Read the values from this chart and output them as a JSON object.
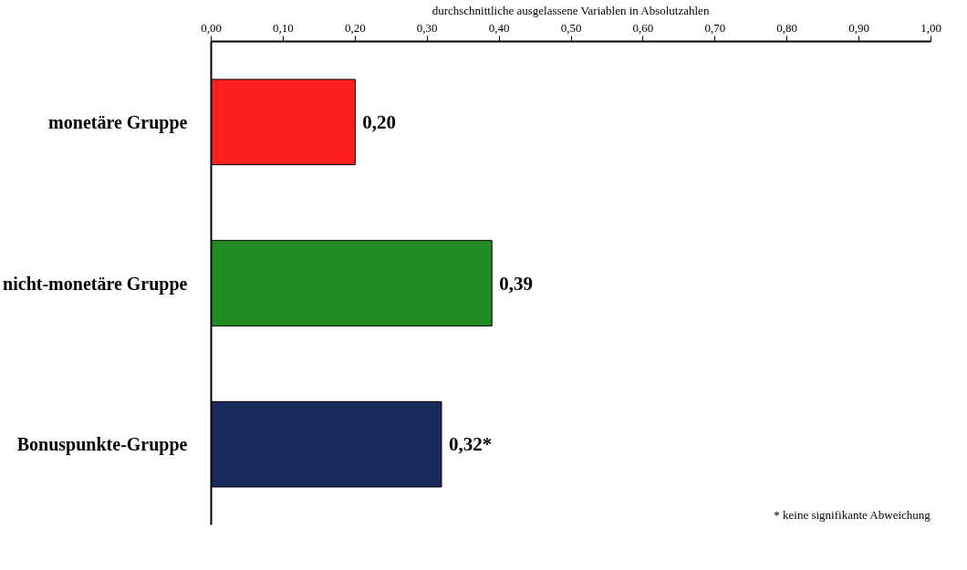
{
  "chart_data": {
    "type": "bar",
    "orientation": "horizontal",
    "xlabel": "durchschnittliche ausgelassene Variablen in Absolutzahlen",
    "categories": [
      "monetäre Gruppe",
      "nicht-monetäre Gruppe",
      "Bonuspunkte-Gruppe"
    ],
    "values": [
      0.2,
      0.39,
      0.32
    ],
    "colors": [
      "#ff2020",
      "#228b22",
      "#1a2a5a"
    ],
    "value_labels": [
      "0,20",
      "0,39",
      "0,32*"
    ],
    "xlim": [
      0,
      1
    ],
    "xticks": [
      {
        "value": 0,
        "label": "0,00"
      },
      {
        "value": 0.1,
        "label": "0,10"
      },
      {
        "value": 0.2,
        "label": "0,20"
      },
      {
        "value": 0.3,
        "label": "0,30"
      },
      {
        "value": 0.4,
        "label": "0,40"
      },
      {
        "value": 0.5,
        "label": "0,50"
      },
      {
        "value": 0.6,
        "label": "0,60"
      },
      {
        "value": 0.7,
        "label": "0,70"
      },
      {
        "value": 0.8,
        "label": "0,80"
      },
      {
        "value": 0.9,
        "label": "0,90"
      },
      {
        "value": 1.0,
        "label": "1,00"
      }
    ],
    "annotations": [
      "* keine signifikante Abweichung"
    ],
    "grid": false
  }
}
